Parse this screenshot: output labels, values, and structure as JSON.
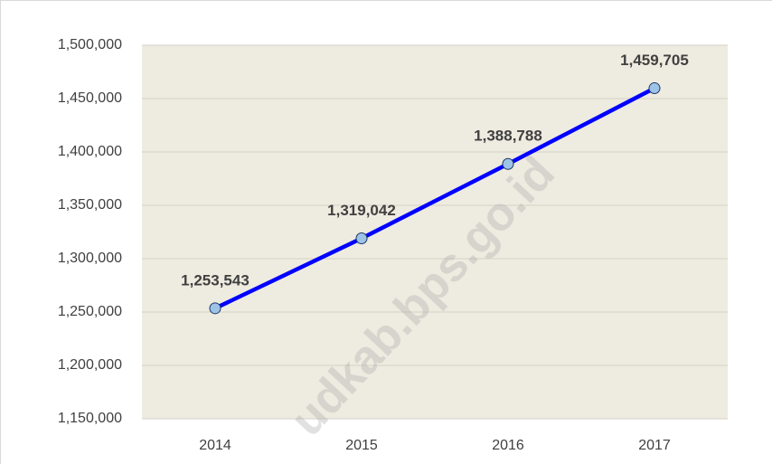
{
  "chart_data": {
    "type": "line",
    "categories": [
      "2014",
      "2015",
      "2016",
      "2017"
    ],
    "series": [
      {
        "name": null,
        "color": "#0000ff",
        "marker_color": "#9dc3e6",
        "values": [
          1253543,
          1319042,
          1388788,
          1459705
        ],
        "value_labels": [
          "1,253,543",
          "1,319,042",
          "1,388,788",
          "1,459,705"
        ]
      }
    ],
    "ylim": [
      1150000,
      1500000
    ],
    "yticks": [
      {
        "value": 1150000,
        "label": "1,150,000"
      },
      {
        "value": 1200000,
        "label": "1,200,000"
      },
      {
        "value": 1250000,
        "label": "1,250,000"
      },
      {
        "value": 1300000,
        "label": "1,300,000"
      },
      {
        "value": 1350000,
        "label": "1,350,000"
      },
      {
        "value": 1400000,
        "label": "1,400,000"
      },
      {
        "value": 1450000,
        "label": "1,450,000"
      },
      {
        "value": 1500000,
        "label": "1,500,000"
      }
    ],
    "grid": true,
    "watermark": "udkab.bps.go.id"
  }
}
